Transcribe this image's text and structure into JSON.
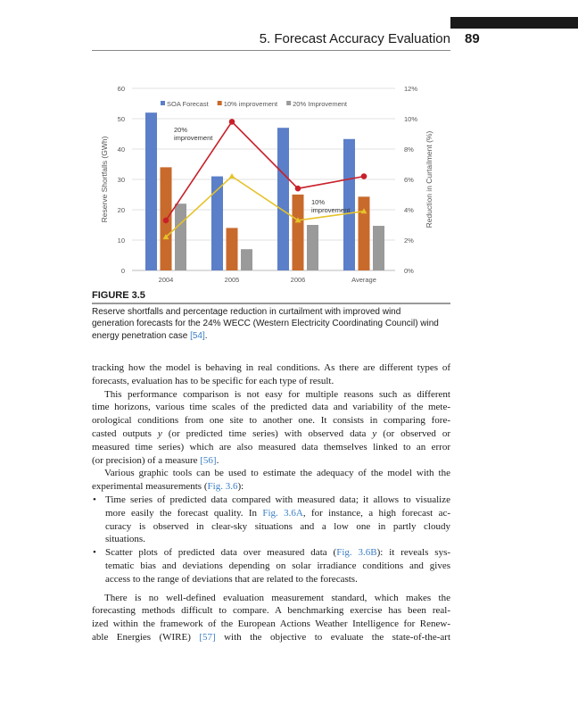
{
  "header": {
    "chapter_title": "5. Forecast Accuracy Evaluation",
    "page_number": "89"
  },
  "figure": {
    "label": "FIGURE 3.5",
    "caption_lines": [
      [
        {
          "t": "Reserve shortfalls and percentage reduction in curtailment with improved wind"
        }
      ],
      [
        {
          "t": "generation forecasts for the 24% WECC (Western Electricity Coordinating Council) wind"
        }
      ],
      [
        {
          "t": "energy penetration case "
        },
        {
          "t": "[54]",
          "link": true
        },
        {
          "t": "."
        }
      ]
    ]
  },
  "chart_data": {
    "type": "bar",
    "categories": [
      "2004",
      "2005",
      "2006",
      "Average"
    ],
    "ylabel": "Reserve Shortfalls (GWh)",
    "ylabel_right": "Reduction in Curtailment (%)",
    "ylim": [
      0,
      60
    ],
    "yticks": [
      "0",
      "10",
      "20",
      "30",
      "40",
      "50",
      "60"
    ],
    "ylim_right": [
      0,
      12
    ],
    "yticks_right": [
      "0%",
      "2%",
      "4%",
      "6%",
      "8%",
      "10%",
      "12%"
    ],
    "grid": true,
    "legend_position": "top",
    "series": [
      {
        "name": "SOA Forecast",
        "type": "bar",
        "axis": "left",
        "color": "#5b7fc8",
        "values": [
          52,
          31,
          47,
          43.3
        ]
      },
      {
        "name": "10% improvement",
        "type": "bar",
        "axis": "left",
        "color": "#c86a2c",
        "values": [
          34,
          14,
          25,
          24.3
        ]
      },
      {
        "name": "20% Improvement",
        "type": "bar",
        "axis": "left",
        "color": "#9a9a9a",
        "values": [
          22,
          7,
          15,
          14.7
        ]
      },
      {
        "type": "line",
        "axis": "right",
        "color": "#c8202a",
        "marker": "circle",
        "values": [
          3.3,
          9.8,
          5.4,
          6.2
        ]
      },
      {
        "type": "line",
        "axis": "right",
        "color": "#e6c229",
        "marker": "triangle",
        "values": [
          2.2,
          6.2,
          3.3,
          3.9
        ]
      }
    ],
    "annotations": [
      {
        "lines": [
          "20%",
          "improvement"
        ]
      },
      {
        "lines": [
          "10%",
          "improvement"
        ]
      }
    ]
  },
  "body": {
    "lines": [
      {
        "seg": [
          {
            "t": "tracking how the model is behaving in real conditions. As there are different types of"
          }
        ]
      },
      {
        "seg": [
          {
            "t": "forecasts, evaluation has to be specific for each type of result."
          }
        ],
        "last": true
      },
      {
        "seg": [
          {
            "t": "This performance comparison is not easy for multiple reasons such as different"
          }
        ],
        "indent": true
      },
      {
        "seg": [
          {
            "t": "time horizons, various time scales of the predicted data and variability of the mete-"
          }
        ]
      },
      {
        "seg": [
          {
            "t": "orological conditions from one site to another one. It consists in comparing fore-"
          }
        ]
      },
      {
        "seg": [
          {
            "t": "casted outputs "
          },
          {
            "t": "y",
            "i": true
          },
          {
            "t": " (or predicted time series) with observed data "
          },
          {
            "t": "y",
            "i": true
          },
          {
            "t": " (or observed or"
          }
        ]
      },
      {
        "seg": [
          {
            "t": "measured time series) which are also measured data themselves linked to an error"
          }
        ]
      },
      {
        "seg": [
          {
            "t": "(or precision) of a measure "
          },
          {
            "t": "[56]",
            "link": true
          },
          {
            "t": "."
          }
        ],
        "last": true
      },
      {
        "seg": [
          {
            "t": "Various graphic tools can be used to estimate the adequacy of the model with the"
          }
        ],
        "indent": true
      },
      {
        "seg": [
          {
            "t": "experimental measurements ("
          },
          {
            "t": "Fig. 3.6",
            "link": true
          },
          {
            "t": "):"
          }
        ],
        "last": true
      },
      {
        "seg": [
          {
            "t": "Time series of predicted data compared with measured data; it allows to visualize"
          }
        ],
        "bullet": true
      },
      {
        "seg": [
          {
            "t": "more easily the forecast quality. In "
          },
          {
            "t": "Fig. 3.6A",
            "link": true
          },
          {
            "t": ", for instance, a high forecast ac-"
          }
        ],
        "sub": true
      },
      {
        "seg": [
          {
            "t": "curacy is observed in clear-sky situations and a low one in partly cloudy"
          }
        ],
        "sub": true
      },
      {
        "seg": [
          {
            "t": "situations."
          }
        ],
        "sub": true,
        "last": true
      },
      {
        "seg": [
          {
            "t": "Scatter plots of predicted data over measured data ("
          },
          {
            "t": "Fig. 3.6B",
            "link": true
          },
          {
            "t": "): it reveals sys-"
          }
        ],
        "bullet": true
      },
      {
        "seg": [
          {
            "t": "tematic bias and deviations depending on solar irradiance conditions and gives"
          }
        ],
        "sub": true
      },
      {
        "seg": [
          {
            "t": "access to the range of deviations that are related to the forecasts."
          }
        ],
        "sub": true,
        "last": true
      },
      {
        "seg": [
          {
            "t": "There is no well-defined evaluation measurement standard, which makes the"
          }
        ],
        "indent": true,
        "gap": true
      },
      {
        "seg": [
          {
            "t": "forecasting methods difficult to compare. A benchmarking exercise has been real-"
          }
        ]
      },
      {
        "seg": [
          {
            "t": "ized within the framework of the European Actions Weather Intelligence for Renew-"
          }
        ]
      },
      {
        "seg": [
          {
            "t": "able Energies (WIRE) "
          },
          {
            "t": "[57]",
            "link": true
          },
          {
            "t": " with the objective to evaluate the state-of-the-art"
          }
        ]
      }
    ],
    "bullet_char": "•"
  }
}
